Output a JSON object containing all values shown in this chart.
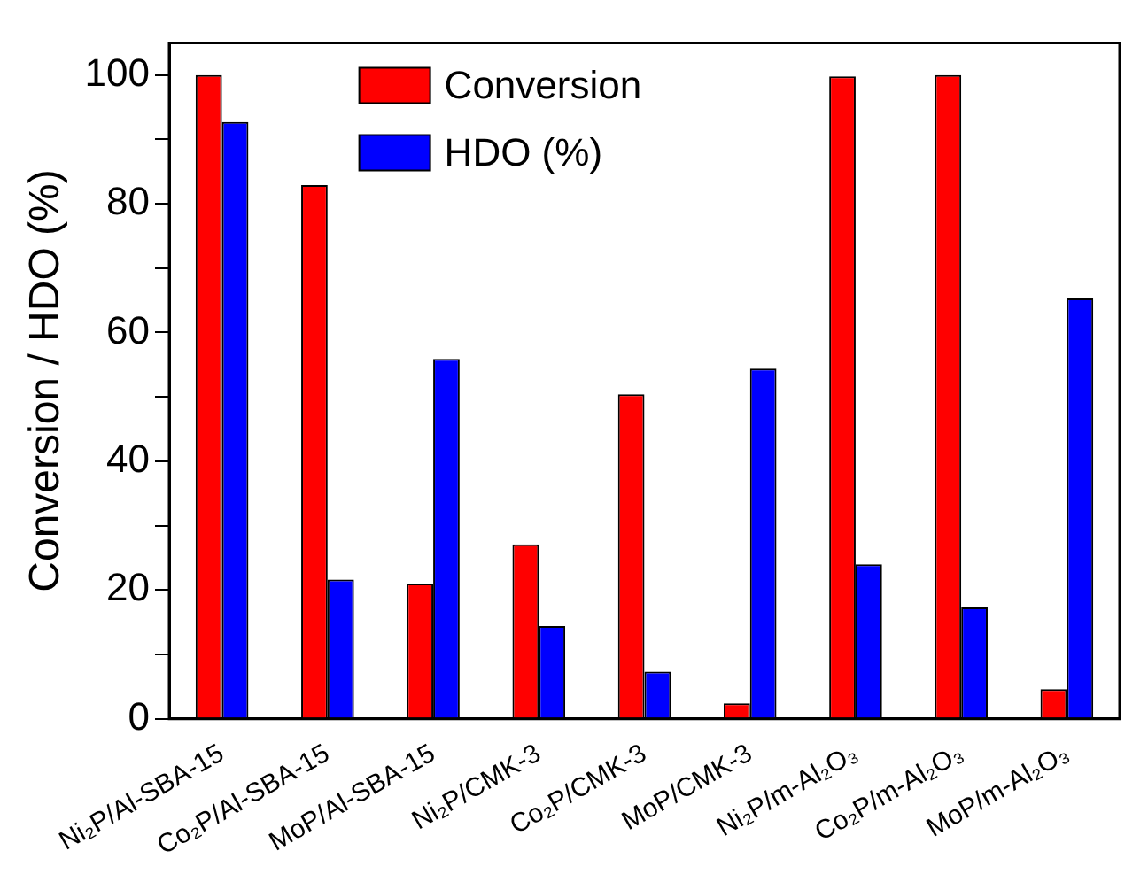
{
  "chart_data": {
    "type": "bar",
    "ylabel": "Conversion / HDO (%)",
    "categories": [
      "Ni₂P/Al-SBA-15",
      "Co₂P/Al-SBA-15",
      "MoP/Al-SBA-15",
      "Ni₂P/CMK-3",
      "Co₂P/CMK-3",
      "MoP/CMK-3",
      "Ni₂P/m-Al₂O₃",
      "Co₂P/m-Al₂O₃",
      "MoP/m-Al₂O₃"
    ],
    "series": [
      {
        "name": "Conversion",
        "color": "#ff0000",
        "values": [
          100,
          82.9,
          21,
          27.1,
          50.4,
          2.4,
          99.8,
          100,
          4.6
        ]
      },
      {
        "name": "HDO (%)",
        "color": "#0000ff",
        "values": [
          92.7,
          21.6,
          55.9,
          14.4,
          7.3,
          54.4,
          24,
          17.3,
          65.3
        ]
      }
    ],
    "ylim": [
      0,
      105
    ],
    "yticks": [
      0,
      {
        "value": 10,
        "label": null
      },
      20,
      {
        "value": 30,
        "label": null
      },
      40,
      {
        "value": 50,
        "label": null
      },
      60,
      {
        "value": 70,
        "label": null
      },
      80,
      {
        "value": 90,
        "label": null
      },
      100
    ],
    "grid": false,
    "legend": "top"
  }
}
